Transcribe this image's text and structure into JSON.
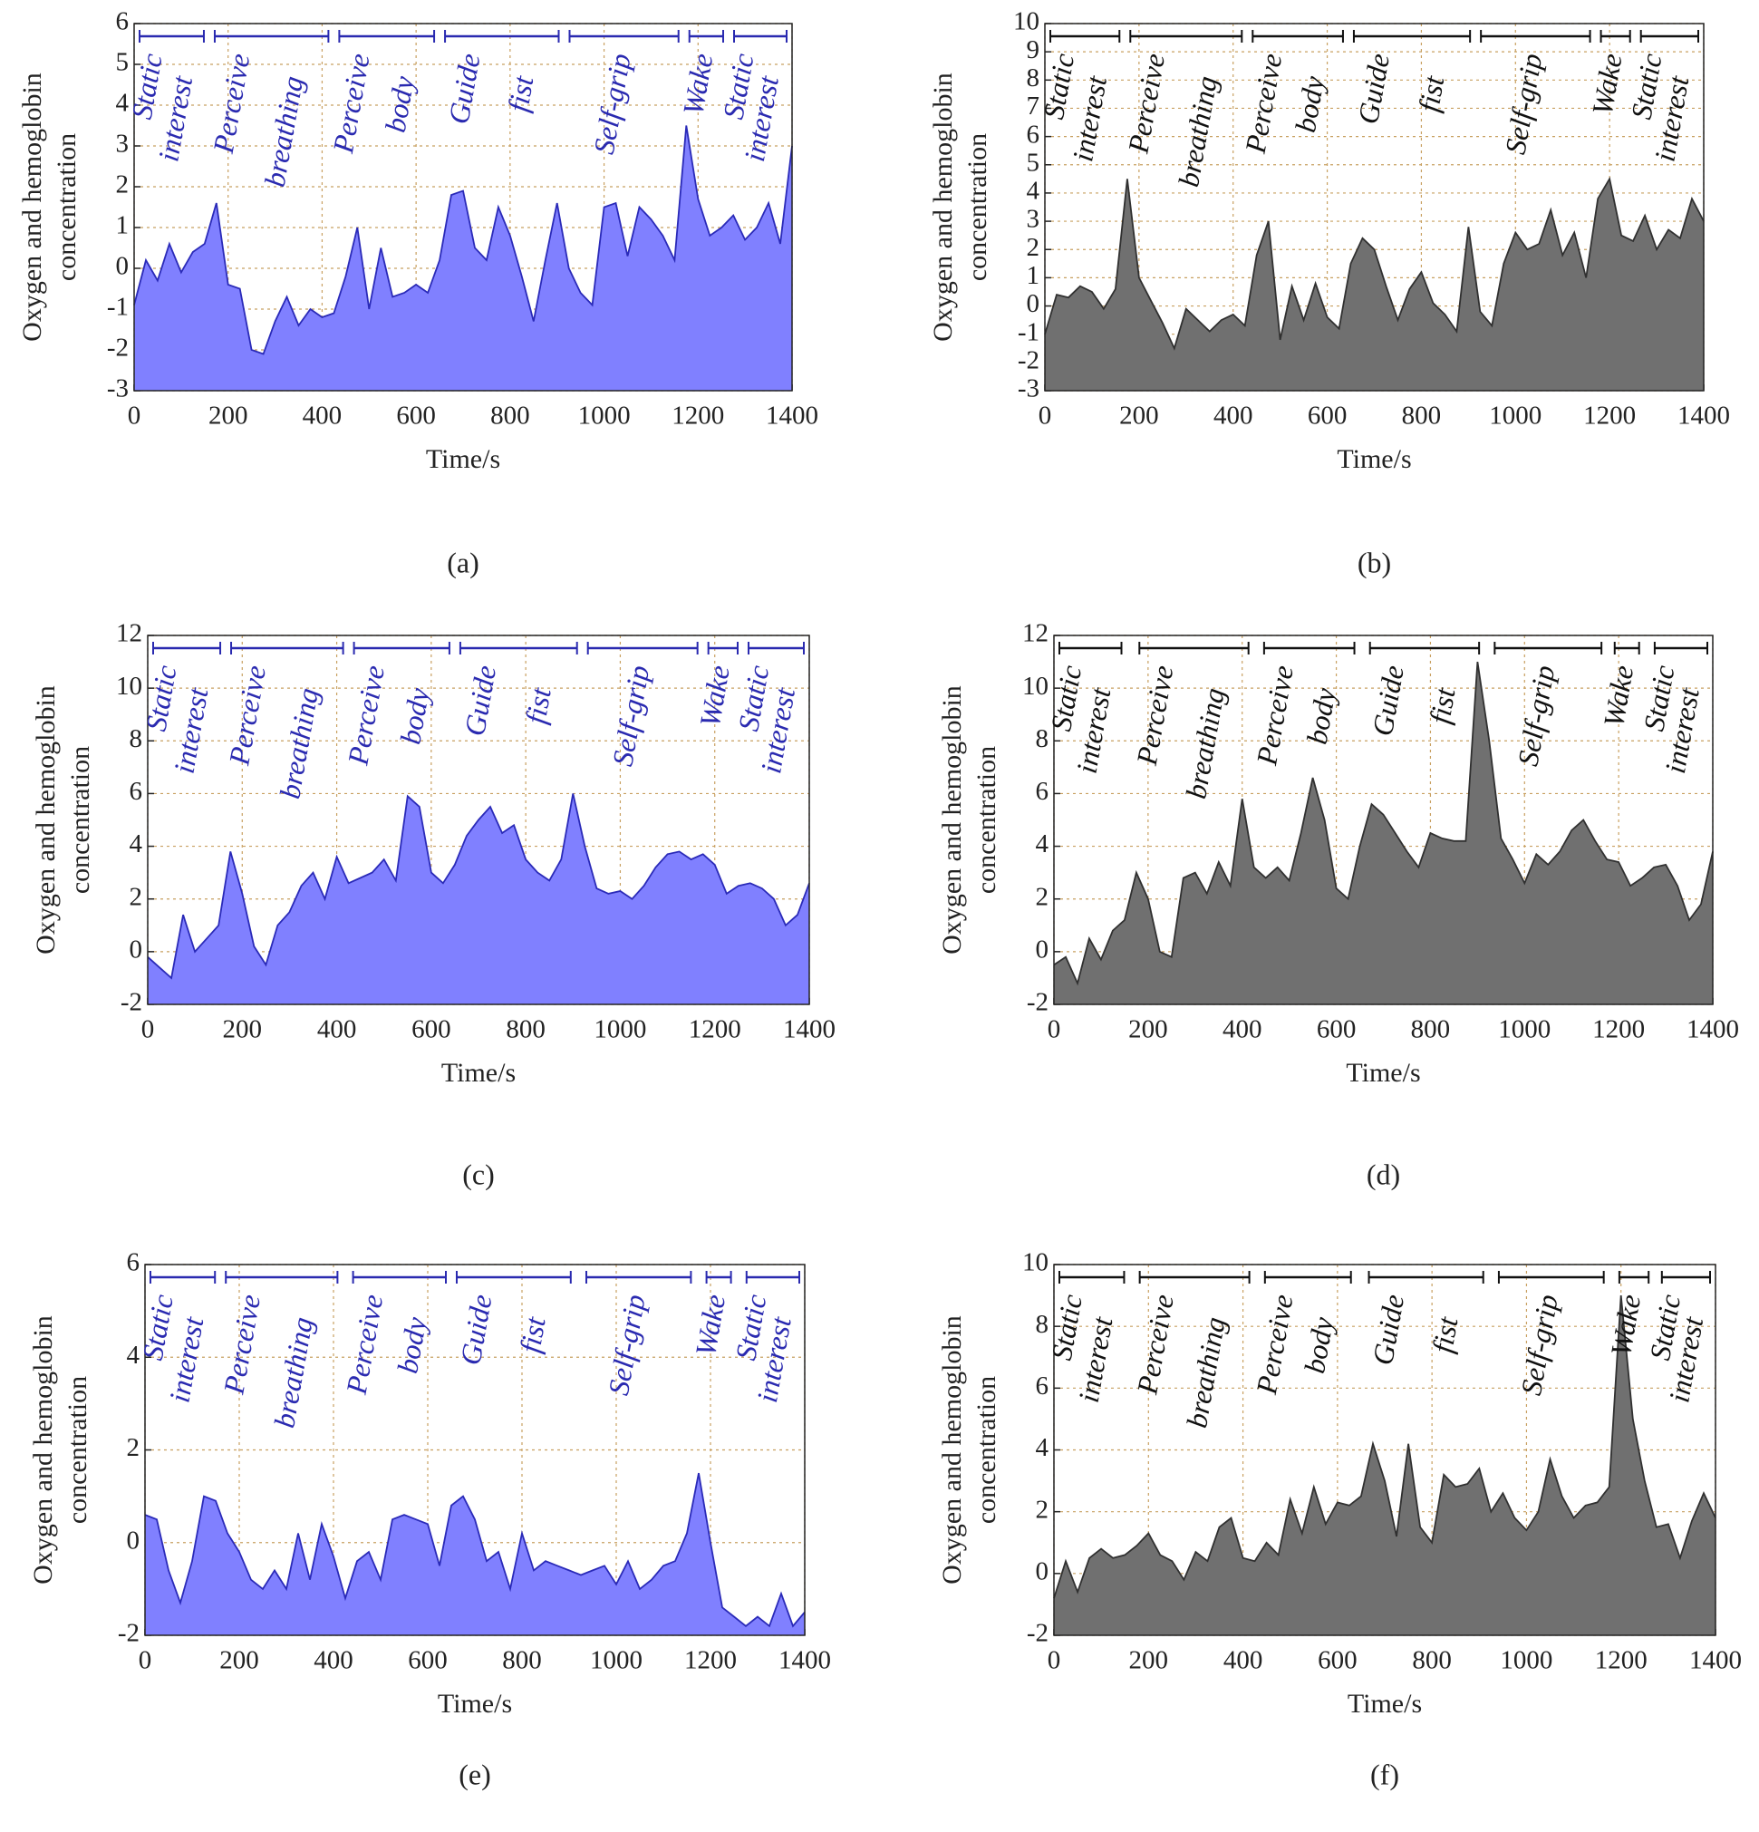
{
  "chart_data": [
    {
      "type": "area",
      "caption": "(a)",
      "ylabel": [
        "Oxygen and hemoglobin",
        "concentration"
      ],
      "xlabel": "Time/s",
      "color": "#8080ff",
      "line_color": "#2a2ab8",
      "annotation_color": "#2a2ab0",
      "x": [
        0,
        25,
        50,
        75,
        100,
        125,
        150,
        175,
        200,
        225,
        250,
        275,
        300,
        325,
        350,
        375,
        400,
        425,
        450,
        475,
        500,
        525,
        550,
        575,
        600,
        625,
        650,
        675,
        700,
        725,
        750,
        775,
        800,
        825,
        850,
        875,
        900,
        925,
        950,
        975,
        1000,
        1025,
        1050,
        1075,
        1100,
        1125,
        1150,
        1175,
        1200,
        1225,
        1250,
        1275,
        1300,
        1325,
        1350,
        1375,
        1400
      ],
      "values": [
        -0.9,
        0.2,
        -0.3,
        0.6,
        -0.1,
        0.4,
        0.6,
        1.6,
        -0.4,
        -0.5,
        -2.0,
        -2.1,
        -1.3,
        -0.7,
        -1.4,
        -1.0,
        -1.2,
        -1.1,
        -0.2,
        1.0,
        -1.0,
        0.5,
        -0.7,
        -0.6,
        -0.4,
        -0.6,
        0.2,
        1.8,
        1.9,
        0.5,
        0.2,
        1.5,
        0.8,
        -0.2,
        -1.3,
        0.2,
        1.6,
        0.0,
        -0.6,
        -0.9,
        1.5,
        1.6,
        0.3,
        1.5,
        1.2,
        0.8,
        0.2,
        3.5,
        1.7,
        0.8,
        1.0,
        1.3,
        0.7,
        1.0,
        1.6,
        0.6,
        3.0
      ],
      "xlim": [
        0,
        1400
      ],
      "xticks": [
        0,
        200,
        400,
        600,
        800,
        1000,
        1200,
        1400
      ],
      "ylim": [
        -3,
        6
      ],
      "yticks": [
        -3,
        -2,
        -1,
        0,
        1,
        2,
        3,
        4,
        5,
        6
      ],
      "grid": true,
      "phases": [
        {
          "label": [
            "Static",
            "interest"
          ],
          "start": 0,
          "end": 160
        },
        {
          "label": [
            "Perceive",
            "breathing"
          ],
          "start": 160,
          "end": 425
        },
        {
          "label": [
            "Perceive",
            "body"
          ],
          "start": 425,
          "end": 650
        },
        {
          "label": [
            "Guide",
            "fist"
          ],
          "start": 650,
          "end": 915
        },
        {
          "label": [
            "Self-grip"
          ],
          "start": 915,
          "end": 1170
        },
        {
          "label": [
            "Wake"
          ],
          "start": 1170,
          "end": 1265
        },
        {
          "label": [
            "Static",
            "interest"
          ],
          "start": 1265,
          "end": 1400
        }
      ]
    },
    {
      "type": "area",
      "caption": "(b)",
      "ylabel": [
        "Oxygen and hemoglobin",
        "concentration"
      ],
      "xlabel": "Time/s",
      "color": "#707070",
      "line_color": "#303030",
      "annotation_color": "#111111",
      "x": [
        0,
        25,
        50,
        75,
        100,
        125,
        150,
        175,
        200,
        225,
        250,
        275,
        300,
        325,
        350,
        375,
        400,
        425,
        450,
        475,
        500,
        525,
        550,
        575,
        600,
        625,
        650,
        675,
        700,
        725,
        750,
        775,
        800,
        825,
        850,
        875,
        900,
        925,
        950,
        975,
        1000,
        1025,
        1050,
        1075,
        1100,
        1125,
        1150,
        1175,
        1200,
        1225,
        1250,
        1275,
        1300,
        1325,
        1350,
        1375,
        1400
      ],
      "values": [
        -1.0,
        0.4,
        0.3,
        0.7,
        0.5,
        -0.1,
        0.6,
        4.5,
        1.0,
        0.2,
        -0.6,
        -1.5,
        -0.1,
        -0.5,
        -0.9,
        -0.5,
        -0.3,
        -0.7,
        1.8,
        3.0,
        -1.2,
        0.7,
        -0.5,
        0.8,
        -0.4,
        -0.8,
        1.5,
        2.4,
        2.0,
        0.7,
        -0.5,
        0.6,
        1.2,
        0.1,
        -0.3,
        -0.9,
        2.8,
        -0.2,
        -0.7,
        1.5,
        2.6,
        2.0,
        2.2,
        3.4,
        1.8,
        2.6,
        1.0,
        3.8,
        4.5,
        2.5,
        2.3,
        3.2,
        2.0,
        2.7,
        2.4,
        3.8,
        3.0
      ],
      "xlim": [
        0,
        1400
      ],
      "xticks": [
        0,
        200,
        400,
        600,
        800,
        1000,
        1200,
        1400
      ],
      "ylim": [
        -3,
        10
      ],
      "yticks": [
        -3,
        -2,
        -1,
        0,
        1,
        2,
        3,
        4,
        5,
        6,
        7,
        8,
        9,
        10
      ],
      "grid": true,
      "phases": [
        {
          "label": [
            "Static",
            "interest"
          ],
          "start": 0,
          "end": 170
        },
        {
          "label": [
            "Perceive",
            "breathing"
          ],
          "start": 170,
          "end": 430
        },
        {
          "label": [
            "Perceive",
            "body"
          ],
          "start": 430,
          "end": 645
        },
        {
          "label": [
            "Guide",
            "fist"
          ],
          "start": 645,
          "end": 915
        },
        {
          "label": [
            "Self-grip"
          ],
          "start": 915,
          "end": 1170
        },
        {
          "label": [
            "Wake"
          ],
          "start": 1170,
          "end": 1255
        },
        {
          "label": [
            "Static",
            "interest"
          ],
          "start": 1255,
          "end": 1400
        }
      ]
    },
    {
      "type": "area",
      "caption": "(c)",
      "ylabel": [
        "Oxygen and hemoglobin",
        "concentration"
      ],
      "xlabel": "Time/s",
      "color": "#8080ff",
      "line_color": "#2a2ab8",
      "annotation_color": "#2a2ab0",
      "x": [
        0,
        25,
        50,
        75,
        100,
        125,
        150,
        175,
        200,
        225,
        250,
        275,
        300,
        325,
        350,
        375,
        400,
        425,
        450,
        475,
        500,
        525,
        550,
        575,
        600,
        625,
        650,
        675,
        700,
        725,
        750,
        775,
        800,
        825,
        850,
        875,
        900,
        925,
        950,
        975,
        1000,
        1025,
        1050,
        1075,
        1100,
        1125,
        1150,
        1175,
        1200,
        1225,
        1250,
        1275,
        1300,
        1325,
        1350,
        1375,
        1400
      ],
      "values": [
        -0.2,
        -0.6,
        -1.0,
        1.4,
        0.0,
        0.5,
        1.0,
        3.8,
        2.2,
        0.2,
        -0.5,
        1.0,
        1.5,
        2.5,
        3.0,
        2.0,
        3.6,
        2.6,
        2.8,
        3.0,
        3.5,
        2.7,
        5.9,
        5.5,
        3.0,
        2.6,
        3.3,
        4.4,
        5.0,
        5.5,
        4.5,
        4.8,
        3.5,
        3.0,
        2.7,
        3.5,
        6.0,
        4.0,
        2.4,
        2.2,
        2.3,
        2.0,
        2.5,
        3.2,
        3.7,
        3.8,
        3.5,
        3.7,
        3.3,
        2.2,
        2.5,
        2.6,
        2.4,
        2.0,
        1.0,
        1.4,
        2.6
      ],
      "xlim": [
        0,
        1400
      ],
      "xticks": [
        0,
        200,
        400,
        600,
        800,
        1000,
        1200,
        1400
      ],
      "ylim": [
        -2,
        12
      ],
      "yticks": [
        -2,
        0,
        2,
        4,
        6,
        8,
        10,
        12
      ],
      "grid": true,
      "phases": [
        {
          "label": [
            "Static",
            "interest"
          ],
          "start": 0,
          "end": 165
        },
        {
          "label": [
            "Perceive",
            "breathing"
          ],
          "start": 165,
          "end": 425
        },
        {
          "label": [
            "Perceive",
            "body"
          ],
          "start": 425,
          "end": 650
        },
        {
          "label": [
            "Guide",
            "fist"
          ],
          "start": 650,
          "end": 920
        },
        {
          "label": [
            "Self-grip"
          ],
          "start": 920,
          "end": 1175
        },
        {
          "label": [
            "Wake"
          ],
          "start": 1175,
          "end": 1260
        },
        {
          "label": [
            "Static",
            "interest"
          ],
          "start": 1260,
          "end": 1400
        }
      ]
    },
    {
      "type": "area",
      "caption": "(d)",
      "ylabel": [
        "Oxygen and hemoglobin",
        "concentration"
      ],
      "xlabel": "Time/s",
      "color": "#707070",
      "line_color": "#303030",
      "annotation_color": "#111111",
      "x": [
        0,
        25,
        50,
        75,
        100,
        125,
        150,
        175,
        200,
        225,
        250,
        275,
        300,
        325,
        350,
        375,
        400,
        425,
        450,
        475,
        500,
        525,
        550,
        575,
        600,
        625,
        650,
        675,
        700,
        725,
        750,
        775,
        800,
        825,
        850,
        875,
        900,
        925,
        950,
        975,
        1000,
        1025,
        1050,
        1075,
        1100,
        1125,
        1150,
        1175,
        1200,
        1225,
        1250,
        1275,
        1300,
        1325,
        1350,
        1375,
        1400
      ],
      "values": [
        -0.5,
        -0.2,
        -1.2,
        0.5,
        -0.3,
        0.8,
        1.2,
        3.0,
        2.0,
        0.0,
        -0.2,
        2.8,
        3.0,
        2.2,
        3.4,
        2.5,
        5.8,
        3.2,
        2.8,
        3.2,
        2.7,
        4.5,
        6.6,
        5.0,
        2.4,
        2.0,
        4.0,
        5.6,
        5.2,
        4.5,
        3.8,
        3.2,
        4.5,
        4.3,
        4.2,
        4.2,
        11.0,
        8.0,
        4.3,
        3.5,
        2.6,
        3.7,
        3.3,
        3.8,
        4.6,
        5.0,
        4.2,
        3.5,
        3.4,
        2.5,
        2.8,
        3.2,
        3.3,
        2.5,
        1.2,
        1.8,
        3.8
      ],
      "xlim": [
        0,
        1400
      ],
      "xticks": [
        0,
        200,
        400,
        600,
        800,
        1000,
        1200,
        1400
      ],
      "ylim": [
        -2,
        12
      ],
      "yticks": [
        -2,
        0,
        2,
        4,
        6,
        8,
        10,
        12
      ],
      "grid": true,
      "phases": [
        {
          "label": [
            "Static",
            "interest"
          ],
          "start": 0,
          "end": 155
        },
        {
          "label": [
            "Perceive",
            "breathing"
          ],
          "start": 170,
          "end": 425
        },
        {
          "label": [
            "Perceive",
            "body"
          ],
          "start": 435,
          "end": 650
        },
        {
          "label": [
            "Guide",
            "fist"
          ],
          "start": 660,
          "end": 915
        },
        {
          "label": [
            "Self-grip"
          ],
          "start": 925,
          "end": 1175
        },
        {
          "label": [
            "Wake"
          ],
          "start": 1180,
          "end": 1255
        },
        {
          "label": [
            "Static",
            "interest"
          ],
          "start": 1265,
          "end": 1400
        }
      ]
    },
    {
      "type": "area",
      "caption": "(e)",
      "ylabel": [
        "Oxygen and hemoglobin",
        "concentration"
      ],
      "xlabel": "Time/s",
      "color": "#8080ff",
      "line_color": "#2a2ab8",
      "annotation_color": "#2a2ab0",
      "x": [
        0,
        25,
        50,
        75,
        100,
        125,
        150,
        175,
        200,
        225,
        250,
        275,
        300,
        325,
        350,
        375,
        400,
        425,
        450,
        475,
        500,
        525,
        550,
        575,
        600,
        625,
        650,
        675,
        700,
        725,
        750,
        775,
        800,
        825,
        850,
        875,
        900,
        925,
        950,
        975,
        1000,
        1025,
        1050,
        1075,
        1100,
        1125,
        1150,
        1175,
        1200,
        1225,
        1250,
        1275,
        1300,
        1325,
        1350,
        1375,
        1400
      ],
      "values": [
        0.6,
        0.5,
        -0.6,
        -1.3,
        -0.4,
        1.0,
        0.9,
        0.2,
        -0.2,
        -0.8,
        -1.0,
        -0.6,
        -1.0,
        0.2,
        -0.8,
        0.4,
        -0.3,
        -1.2,
        -0.4,
        -0.2,
        -0.8,
        0.5,
        0.6,
        0.5,
        0.4,
        -0.5,
        0.8,
        1.0,
        0.5,
        -0.4,
        -0.2,
        -1.0,
        0.2,
        -0.6,
        -0.4,
        -0.5,
        -0.6,
        -0.7,
        -0.6,
        -0.5,
        -0.9,
        -0.4,
        -1.0,
        -0.8,
        -0.5,
        -0.4,
        0.2,
        1.5,
        0.0,
        -1.4,
        -1.6,
        -1.8,
        -1.6,
        -1.8,
        -1.1,
        -1.8,
        -1.5
      ],
      "xlim": [
        0,
        1400
      ],
      "xticks": [
        0,
        200,
        400,
        600,
        800,
        1000,
        1200,
        1400
      ],
      "ylim": [
        -2,
        6
      ],
      "yticks": [
        -2,
        0,
        2,
        4,
        6
      ],
      "grid": true,
      "phases": [
        {
          "label": [
            "Static",
            "interest"
          ],
          "start": 0,
          "end": 160
        },
        {
          "label": [
            "Perceive",
            "breathing"
          ],
          "start": 160,
          "end": 420
        },
        {
          "label": [
            "Perceive",
            "body"
          ],
          "start": 430,
          "end": 650
        },
        {
          "label": [
            "Guide",
            "fist"
          ],
          "start": 650,
          "end": 915
        },
        {
          "label": [
            "Self-grip"
          ],
          "start": 925,
          "end": 1170
        },
        {
          "label": [
            "Wake"
          ],
          "start": 1180,
          "end": 1255
        },
        {
          "label": [
            "Static",
            "interest"
          ],
          "start": 1265,
          "end": 1400
        }
      ]
    },
    {
      "type": "area",
      "caption": "(f)",
      "ylabel": [
        "Oxygen and hemoglobin",
        "concentration"
      ],
      "xlabel": "Time/s",
      "color": "#707070",
      "line_color": "#303030",
      "annotation_color": "#111111",
      "x": [
        0,
        25,
        50,
        75,
        100,
        125,
        150,
        175,
        200,
        225,
        250,
        275,
        300,
        325,
        350,
        375,
        400,
        425,
        450,
        475,
        500,
        525,
        550,
        575,
        600,
        625,
        650,
        675,
        700,
        725,
        750,
        775,
        800,
        825,
        850,
        875,
        900,
        925,
        950,
        975,
        1000,
        1025,
        1050,
        1075,
        1100,
        1125,
        1150,
        1175,
        1200,
        1225,
        1250,
        1275,
        1300,
        1325,
        1350,
        1375,
        1400
      ],
      "values": [
        -0.8,
        0.4,
        -0.6,
        0.5,
        0.8,
        0.5,
        0.6,
        0.9,
        1.3,
        0.6,
        0.4,
        -0.2,
        0.7,
        0.4,
        1.5,
        1.8,
        0.5,
        0.4,
        1.0,
        0.6,
        2.4,
        1.3,
        2.8,
        1.6,
        2.3,
        2.2,
        2.5,
        4.2,
        3.0,
        1.2,
        4.2,
        1.5,
        1.0,
        3.2,
        2.8,
        2.9,
        3.4,
        2.0,
        2.6,
        1.8,
        1.4,
        2.0,
        3.7,
        2.5,
        1.8,
        2.2,
        2.3,
        2.8,
        9.0,
        5.0,
        3.0,
        1.5,
        1.6,
        0.5,
        1.7,
        2.6,
        1.8
      ],
      "xlim": [
        0,
        1400
      ],
      "xticks": [
        0,
        200,
        400,
        600,
        800,
        1000,
        1200,
        1400
      ],
      "ylim": [
        -2,
        10
      ],
      "yticks": [
        -2,
        0,
        2,
        4,
        6,
        8,
        10
      ],
      "grid": true,
      "phases": [
        {
          "label": [
            "Static",
            "interest"
          ],
          "start": 0,
          "end": 160
        },
        {
          "label": [
            "Perceive",
            "breathing"
          ],
          "start": 170,
          "end": 425
        },
        {
          "label": [
            "Perceive",
            "body"
          ],
          "start": 435,
          "end": 640
        },
        {
          "label": [
            "Guide",
            "fist"
          ],
          "start": 655,
          "end": 920
        },
        {
          "label": [
            "Self-grip"
          ],
          "start": 930,
          "end": 1175
        },
        {
          "label": [
            "Wake"
          ],
          "start": 1185,
          "end": 1270
        },
        {
          "label": [
            "Static",
            "interest"
          ],
          "start": 1275,
          "end": 1400
        }
      ]
    }
  ]
}
